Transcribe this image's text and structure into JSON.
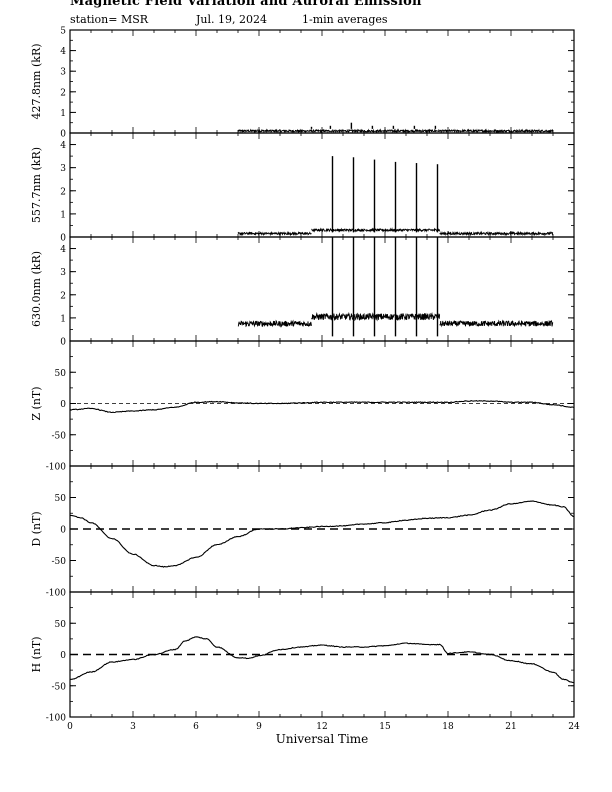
{
  "header": {
    "title": "Magnetic Field Variation and Auroral Emission",
    "station": "station= MSR",
    "date": "Jul.  19,  2024",
    "averaging": "1-min averages"
  },
  "chart_data": [
    {
      "type": "line",
      "ylabel": "427.8nm (kR)",
      "ylim": [
        0,
        5
      ],
      "yticks": [
        0,
        1,
        2,
        3,
        4,
        5
      ],
      "xlim": [
        0,
        24
      ],
      "baseline_dashed": false,
      "series": [
        {
          "segments": [
            {
              "x": [
                8.0,
                23.0
              ],
              "level": 0.1,
              "noise": 0.05
            }
          ],
          "spikes": [
            {
              "x": 11.5,
              "y": 0.3
            },
            {
              "x": 12.4,
              "y": 0.35
            },
            {
              "x": 13.4,
              "y": 0.5
            },
            {
              "x": 14.4,
              "y": 0.35
            },
            {
              "x": 15.4,
              "y": 0.35
            },
            {
              "x": 16.4,
              "y": 0.35
            },
            {
              "x": 17.4,
              "y": 0.35
            }
          ]
        }
      ]
    },
    {
      "type": "line",
      "ylabel": "557.7nm (kR)",
      "ylim": [
        0,
        4.5
      ],
      "yticks": [
        0,
        1,
        2,
        3,
        4
      ],
      "xlim": [
        0,
        24
      ],
      "baseline_dashed": false,
      "series": [
        {
          "segments": [
            {
              "x": [
                8.0,
                11.5
              ],
              "level": 0.15,
              "noise": 0.05
            },
            {
              "x": [
                11.5,
                17.6
              ],
              "level": 0.3,
              "noise": 0.05
            },
            {
              "x": [
                17.6,
                23.0
              ],
              "level": 0.15,
              "noise": 0.05
            }
          ],
          "spikes": [
            {
              "x": 12.5,
              "y": 3.5
            },
            {
              "x": 13.5,
              "y": 3.45
            },
            {
              "x": 14.5,
              "y": 3.35
            },
            {
              "x": 15.5,
              "y": 3.25
            },
            {
              "x": 16.5,
              "y": 3.2
            },
            {
              "x": 17.5,
              "y": 3.15
            }
          ]
        }
      ]
    },
    {
      "type": "line",
      "ylabel": "630.0nm (kR)",
      "ylim": [
        0,
        4.5
      ],
      "yticks": [
        0,
        1,
        2,
        3,
        4
      ],
      "xlim": [
        0,
        24
      ],
      "baseline_dashed": false,
      "series": [
        {
          "segments": [
            {
              "x": [
                8.0,
                11.5
              ],
              "level": 0.75,
              "noise": 0.12
            },
            {
              "x": [
                11.5,
                17.6
              ],
              "level": 1.05,
              "noise": 0.14
            },
            {
              "x": [
                17.6,
                23.0
              ],
              "level": 0.75,
              "noise": 0.12
            }
          ],
          "spikes": [
            {
              "x": 12.5,
              "y": 4.5
            },
            {
              "x": 13.5,
              "y": 4.5
            },
            {
              "x": 14.5,
              "y": 4.5
            },
            {
              "x": 15.5,
              "y": 4.5
            },
            {
              "x": 16.5,
              "y": 4.5
            },
            {
              "x": 17.5,
              "y": 4.5
            }
          ]
        }
      ]
    },
    {
      "type": "line",
      "ylabel": "Z (nT)",
      "ylim": [
        -100,
        100
      ],
      "yticks": [
        -100,
        -50,
        0,
        50
      ],
      "xlim": [
        0,
        24
      ],
      "baseline_dashed": true,
      "series": [
        {
          "x": [
            0,
            1,
            2,
            3,
            4,
            5,
            6,
            7,
            8,
            9,
            10,
            11,
            12,
            13,
            14,
            15,
            16,
            17,
            18,
            19,
            20,
            21,
            22,
            23,
            24
          ],
          "y": [
            -10,
            -8,
            -14,
            -12,
            -10,
            -6,
            2,
            3,
            1,
            0,
            0,
            1,
            2,
            2,
            2,
            2,
            2,
            2,
            2,
            4,
            4,
            2,
            2,
            -2,
            -6
          ]
        }
      ]
    },
    {
      "type": "line",
      "ylabel": "D (nT)",
      "ylim": [
        -100,
        100
      ],
      "yticks": [
        -100,
        -50,
        0,
        50
      ],
      "xlim": [
        0,
        24
      ],
      "baseline_dashed": true,
      "series": [
        {
          "x": [
            0,
            0.5,
            1,
            2,
            3,
            4,
            4.5,
            5,
            6,
            7,
            8,
            9,
            10,
            11,
            12,
            13,
            14,
            15,
            16,
            17,
            18,
            19,
            20,
            21,
            22,
            23,
            23.5,
            24
          ],
          "y": [
            22,
            18,
            10,
            -15,
            -40,
            -58,
            -60,
            -58,
            -45,
            -25,
            -12,
            0,
            0,
            2,
            4,
            5,
            8,
            10,
            14,
            17,
            18,
            22,
            30,
            40,
            44,
            38,
            35,
            20
          ]
        }
      ]
    },
    {
      "type": "line",
      "ylabel": "H (nT)",
      "ylim": [
        -100,
        100
      ],
      "yticks": [
        -100,
        -50,
        0,
        50
      ],
      "xlim": [
        0,
        24
      ],
      "baseline_dashed": true,
      "xlabel": "Universal Time",
      "xticks": [
        0,
        3,
        6,
        9,
        12,
        15,
        18,
        21,
        24
      ],
      "series": [
        {
          "x": [
            0,
            1,
            2,
            3,
            4,
            5,
            5.5,
            6,
            6.5,
            7,
            8,
            8.5,
            9,
            10,
            11,
            12,
            13,
            14,
            15,
            16,
            17,
            17.6,
            18,
            19,
            20,
            21,
            22,
            23,
            23.5,
            24
          ],
          "y": [
            -40,
            -28,
            -12,
            -8,
            0,
            8,
            22,
            28,
            25,
            12,
            -5,
            -6,
            -2,
            8,
            12,
            15,
            12,
            12,
            14,
            18,
            16,
            16,
            2,
            4,
            0,
            -10,
            -15,
            -28,
            -40,
            -45
          ]
        }
      ]
    }
  ]
}
